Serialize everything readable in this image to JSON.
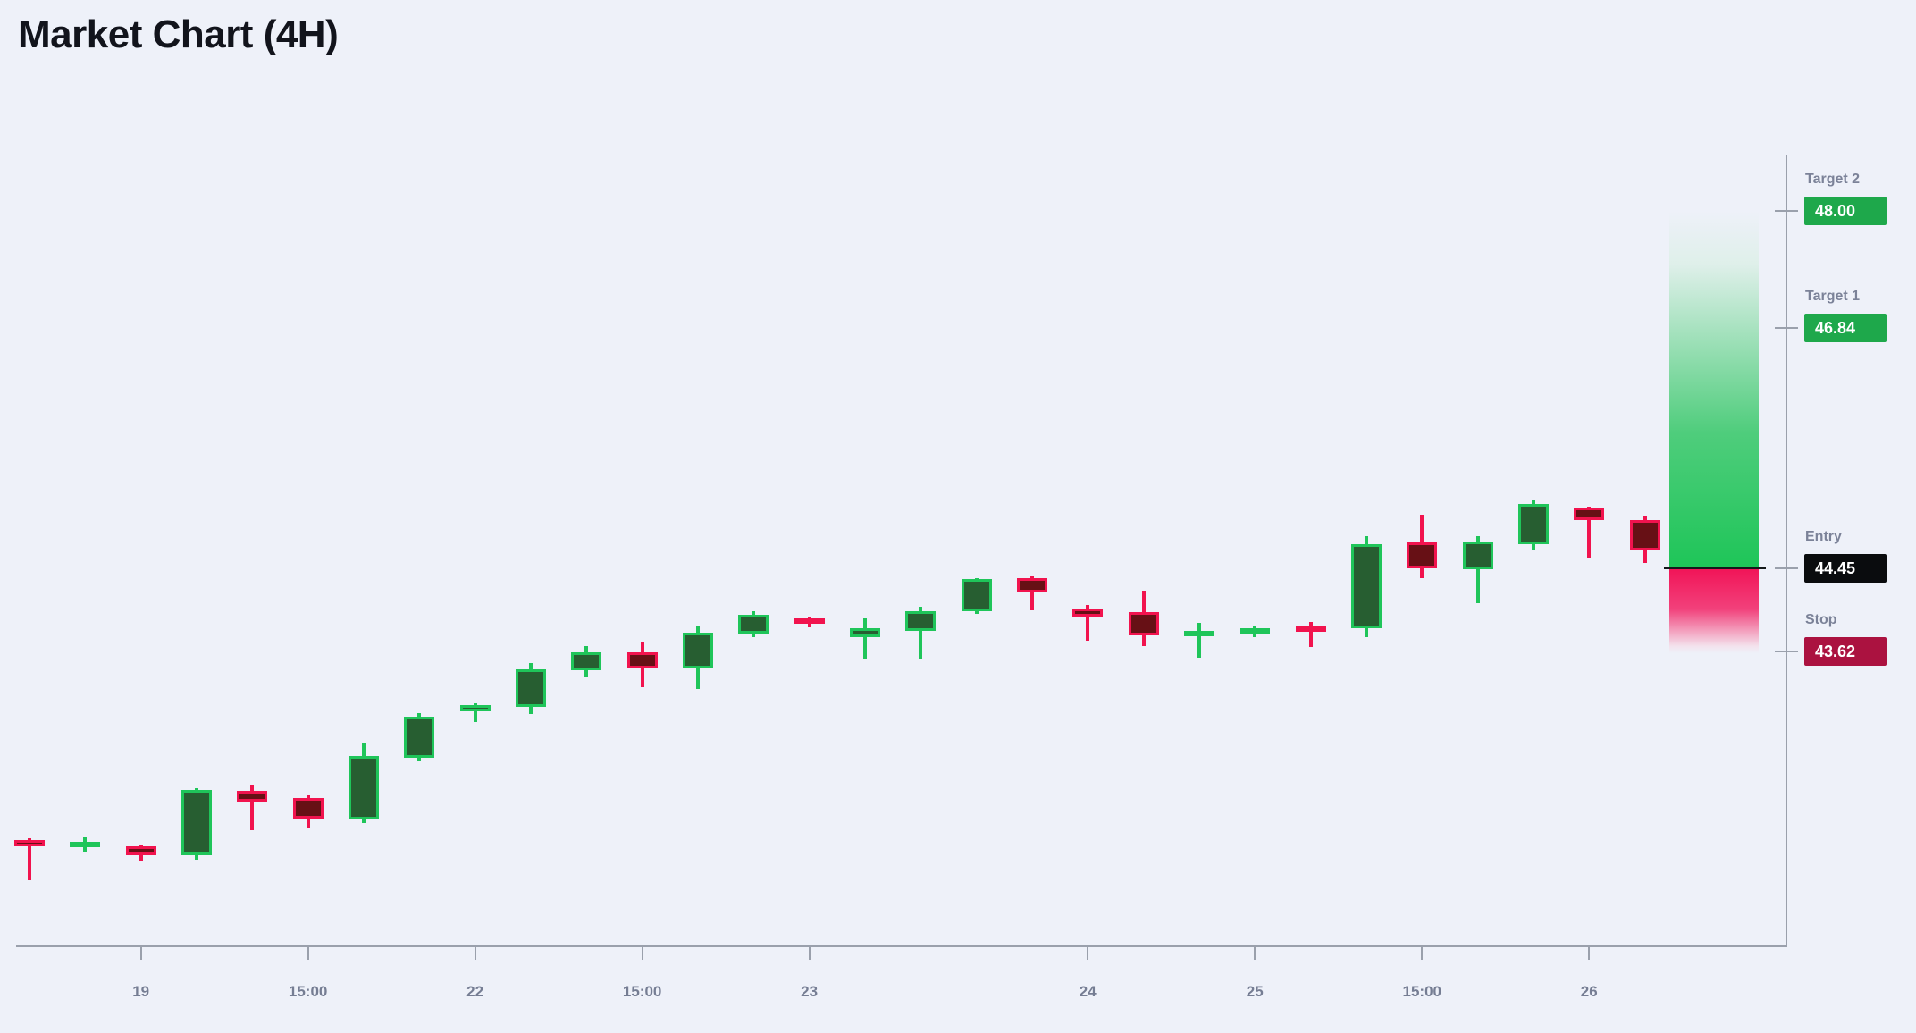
{
  "title": "Market Chart (4H)",
  "colors": {
    "background": "#eef1f9",
    "title_text": "#12141c",
    "bullish_border": "#1fc55a",
    "bullish_fill": "#275e31",
    "bearish_border": "#f1134e",
    "bearish_fill": "#671015",
    "profit_zone": "#1ec558",
    "loss_zone": "#f11357",
    "entry_line": "#14181a",
    "target_badge": "#1ea84b",
    "entry_badge": "#0a0c0e",
    "stop_badge": "#ab1240",
    "axis": "#9aa0ac",
    "x_tick_label": "#757d93",
    "level_label": "#7b8298",
    "badge_text": "#ffffff"
  },
  "chart_data": {
    "type": "candlestick",
    "title": "Market Chart (4H)",
    "timeframe": "4H",
    "grid": "off",
    "legend": "none",
    "ylim": [
      40.7,
      48.6
    ],
    "y_axis_side": "right",
    "x_ticks": [
      {
        "candle_index": 2,
        "label": "19"
      },
      {
        "candle_index": 5,
        "label": "15:00"
      },
      {
        "candle_index": 8,
        "label": "22"
      },
      {
        "candle_index": 11,
        "label": "15:00"
      },
      {
        "candle_index": 14,
        "label": "23"
      },
      {
        "candle_index": 19,
        "label": "24"
      },
      {
        "candle_index": 22,
        "label": "25"
      },
      {
        "candle_index": 25,
        "label": "15:00"
      },
      {
        "candle_index": 28,
        "label": "26"
      }
    ],
    "candles": [
      {
        "open": 41.74,
        "high": 41.76,
        "low": 41.34,
        "close": 41.68
      },
      {
        "open": 41.67,
        "high": 41.77,
        "low": 41.63,
        "close": 41.73
      },
      {
        "open": 41.68,
        "high": 41.69,
        "low": 41.54,
        "close": 41.59
      },
      {
        "open": 41.59,
        "high": 42.26,
        "low": 41.55,
        "close": 42.24
      },
      {
        "open": 42.23,
        "high": 42.29,
        "low": 41.84,
        "close": 42.13
      },
      {
        "open": 42.16,
        "high": 42.19,
        "low": 41.86,
        "close": 41.96
      },
      {
        "open": 41.95,
        "high": 42.7,
        "low": 41.91,
        "close": 42.58
      },
      {
        "open": 42.56,
        "high": 43.01,
        "low": 42.53,
        "close": 42.97
      },
      {
        "open": 43.02,
        "high": 43.1,
        "low": 42.92,
        "close": 43.09
      },
      {
        "open": 43.07,
        "high": 43.5,
        "low": 43.0,
        "close": 43.44
      },
      {
        "open": 43.43,
        "high": 43.67,
        "low": 43.36,
        "close": 43.61
      },
      {
        "open": 43.61,
        "high": 43.71,
        "low": 43.26,
        "close": 43.45
      },
      {
        "open": 43.45,
        "high": 43.87,
        "low": 43.25,
        "close": 43.81
      },
      {
        "open": 43.8,
        "high": 44.02,
        "low": 43.76,
        "close": 43.98
      },
      {
        "open": 43.95,
        "high": 43.97,
        "low": 43.86,
        "close": 43.9
      },
      {
        "open": 43.76,
        "high": 43.95,
        "low": 43.55,
        "close": 43.85
      },
      {
        "open": 43.82,
        "high": 44.06,
        "low": 43.55,
        "close": 44.02
      },
      {
        "open": 44.02,
        "high": 44.35,
        "low": 43.99,
        "close": 44.34
      },
      {
        "open": 44.35,
        "high": 44.37,
        "low": 44.03,
        "close": 44.21
      },
      {
        "open": 44.05,
        "high": 44.08,
        "low": 43.73,
        "close": 43.97
      },
      {
        "open": 44.01,
        "high": 44.22,
        "low": 43.67,
        "close": 43.78
      },
      {
        "open": 43.77,
        "high": 43.9,
        "low": 43.56,
        "close": 43.82
      },
      {
        "open": 43.8,
        "high": 43.88,
        "low": 43.76,
        "close": 43.85
      },
      {
        "open": 43.87,
        "high": 43.91,
        "low": 43.66,
        "close": 43.82
      },
      {
        "open": 43.85,
        "high": 44.77,
        "low": 43.76,
        "close": 44.69
      },
      {
        "open": 44.7,
        "high": 44.98,
        "low": 44.35,
        "close": 44.45
      },
      {
        "open": 44.44,
        "high": 44.77,
        "low": 44.1,
        "close": 44.71
      },
      {
        "open": 44.69,
        "high": 45.13,
        "low": 44.63,
        "close": 45.09
      },
      {
        "open": 45.05,
        "high": 45.06,
        "low": 44.54,
        "close": 44.93
      },
      {
        "open": 44.93,
        "high": 44.97,
        "low": 44.5,
        "close": 44.62
      }
    ],
    "levels": [
      {
        "id": "target2",
        "label": "Target 2",
        "value": "48.00",
        "price": 48.0,
        "style": "target"
      },
      {
        "id": "target1",
        "label": "Target 1",
        "value": "46.84",
        "price": 46.84,
        "style": "target"
      },
      {
        "id": "entry",
        "label": "Entry",
        "value": "44.45",
        "price": 44.45,
        "style": "entry"
      },
      {
        "id": "stop",
        "label": "Stop",
        "value": "43.62",
        "price": 43.62,
        "style": "stop"
      }
    ],
    "zone": {
      "profit_from_price": 44.45,
      "profit_to_price": 48.0,
      "loss_from_price": 44.45,
      "loss_to_price": 43.62
    }
  }
}
